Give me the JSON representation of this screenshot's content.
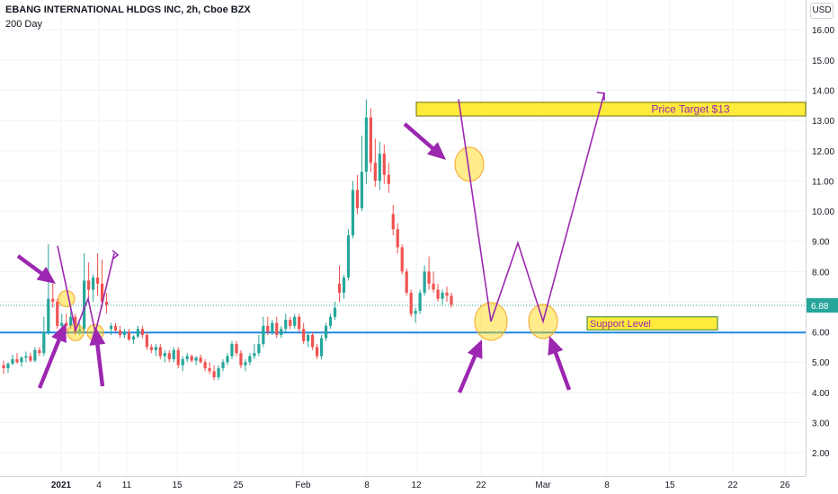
{
  "header": {
    "title": "EBANG INTERNATIONAL HLDGS INC, 2h, Cboe BZX",
    "indicator": "200 Day",
    "currency": "USD"
  },
  "chart_data": {
    "type": "candlestick",
    "ylim": [
      1.35,
      16.75
    ],
    "y_ticks": [
      "16.00",
      "15.00",
      "14.00",
      "13.00",
      "12.00",
      "11.00",
      "10.00",
      "9.00",
      "8.00",
      "7.00",
      "6.00",
      "5.00",
      "4.00",
      "3.00",
      "2.00"
    ],
    "x_ticks": [
      "2021",
      "4",
      "11",
      "15",
      "25",
      "Feb",
      "8",
      "12",
      "22",
      "Mar",
      "8",
      "15",
      "22",
      "26"
    ],
    "last_price": "6.88",
    "support_level": 5.98,
    "colors": {
      "up": "#26a69a",
      "down": "#ef5350",
      "support": "#1e88e5",
      "annotation": "#9c27b0",
      "last_price": "#26a69a"
    },
    "annotations": {
      "price_target_label": "Price Target $13",
      "support_label": "Support Level"
    },
    "candles": [
      {
        "o": 4.9,
        "h": 5.05,
        "l": 4.6,
        "c": 4.8
      },
      {
        "o": 4.8,
        "h": 5.0,
        "l": 4.65,
        "c": 4.95
      },
      {
        "o": 4.95,
        "h": 5.25,
        "l": 4.9,
        "c": 5.1
      },
      {
        "o": 5.1,
        "h": 5.3,
        "l": 4.95,
        "c": 5.0
      },
      {
        "o": 5.0,
        "h": 5.2,
        "l": 4.85,
        "c": 5.15
      },
      {
        "o": 5.15,
        "h": 5.35,
        "l": 5.0,
        "c": 5.2
      },
      {
        "o": 5.2,
        "h": 5.3,
        "l": 5.0,
        "c": 5.05
      },
      {
        "o": 5.05,
        "h": 5.5,
        "l": 5.0,
        "c": 5.4
      },
      {
        "o": 5.4,
        "h": 5.5,
        "l": 5.2,
        "c": 5.3
      },
      {
        "o": 5.3,
        "h": 6.5,
        "l": 5.2,
        "c": 6.0
      },
      {
        "o": 6.0,
        "h": 8.9,
        "l": 5.9,
        "c": 7.1
      },
      {
        "o": 7.1,
        "h": 7.6,
        "l": 6.8,
        "c": 7.0
      },
      {
        "o": 7.0,
        "h": 7.1,
        "l": 6.1,
        "c": 6.2
      },
      {
        "o": 6.2,
        "h": 6.6,
        "l": 5.8,
        "c": 6.3
      },
      {
        "o": 6.3,
        "h": 6.6,
        "l": 6.0,
        "c": 6.2
      },
      {
        "o": 6.2,
        "h": 6.9,
        "l": 6.1,
        "c": 6.5
      },
      {
        "o": 6.5,
        "h": 6.6,
        "l": 5.9,
        "c": 6.0
      },
      {
        "o": 6.0,
        "h": 6.3,
        "l": 5.9,
        "c": 6.1
      },
      {
        "o": 6.1,
        "h": 8.6,
        "l": 6.0,
        "c": 7.7
      },
      {
        "o": 7.7,
        "h": 8.3,
        "l": 7.1,
        "c": 7.4
      },
      {
        "o": 7.4,
        "h": 7.9,
        "l": 7.0,
        "c": 7.8
      },
      {
        "o": 7.8,
        "h": 8.6,
        "l": 7.2,
        "c": 7.6
      },
      {
        "o": 7.6,
        "h": 8.4,
        "l": 6.8,
        "c": 7.0
      },
      {
        "o": 7.0,
        "h": 7.3,
        "l": 6.6,
        "c": 6.9
      },
      {
        "o": 6.1,
        "h": 6.3,
        "l": 5.9,
        "c": 6.2
      },
      {
        "o": 6.2,
        "h": 6.3,
        "l": 6.0,
        "c": 6.05
      },
      {
        "o": 6.05,
        "h": 6.2,
        "l": 5.8,
        "c": 5.9
      },
      {
        "o": 5.9,
        "h": 6.1,
        "l": 5.8,
        "c": 6.0
      },
      {
        "o": 6.0,
        "h": 6.1,
        "l": 5.7,
        "c": 5.75
      },
      {
        "o": 5.75,
        "h": 5.9,
        "l": 5.6,
        "c": 5.85
      },
      {
        "o": 5.85,
        "h": 6.2,
        "l": 5.8,
        "c": 6.1
      },
      {
        "o": 6.1,
        "h": 6.2,
        "l": 5.8,
        "c": 5.9
      },
      {
        "o": 5.9,
        "h": 6.0,
        "l": 5.4,
        "c": 5.5
      },
      {
        "o": 5.5,
        "h": 5.6,
        "l": 5.3,
        "c": 5.4
      },
      {
        "o": 5.4,
        "h": 5.6,
        "l": 5.2,
        "c": 5.5
      },
      {
        "o": 5.5,
        "h": 5.6,
        "l": 5.1,
        "c": 5.2
      },
      {
        "o": 5.2,
        "h": 5.4,
        "l": 5.0,
        "c": 5.3
      },
      {
        "o": 5.3,
        "h": 5.4,
        "l": 5.0,
        "c": 5.1
      },
      {
        "o": 5.1,
        "h": 5.5,
        "l": 5.0,
        "c": 5.4
      },
      {
        "o": 5.4,
        "h": 5.5,
        "l": 4.8,
        "c": 4.9
      },
      {
        "o": 4.9,
        "h": 5.2,
        "l": 4.7,
        "c": 5.1
      },
      {
        "o": 5.1,
        "h": 5.3,
        "l": 5.0,
        "c": 5.2
      },
      {
        "o": 5.2,
        "h": 5.25,
        "l": 5.0,
        "c": 5.05
      },
      {
        "o": 5.05,
        "h": 5.2,
        "l": 4.9,
        "c": 5.15
      },
      {
        "o": 5.15,
        "h": 5.25,
        "l": 4.95,
        "c": 5.0
      },
      {
        "o": 5.0,
        "h": 5.1,
        "l": 4.7,
        "c": 4.8
      },
      {
        "o": 4.8,
        "h": 5.0,
        "l": 4.6,
        "c": 4.7
      },
      {
        "o": 4.7,
        "h": 4.9,
        "l": 4.4,
        "c": 4.5
      },
      {
        "o": 4.5,
        "h": 4.9,
        "l": 4.4,
        "c": 4.8
      },
      {
        "o": 4.8,
        "h": 5.1,
        "l": 4.7,
        "c": 5.0
      },
      {
        "o": 5.0,
        "h": 5.3,
        "l": 4.9,
        "c": 5.2
      },
      {
        "o": 5.2,
        "h": 5.7,
        "l": 5.1,
        "c": 5.6
      },
      {
        "o": 5.6,
        "h": 5.7,
        "l": 5.2,
        "c": 5.3
      },
      {
        "o": 5.3,
        "h": 5.4,
        "l": 4.8,
        "c": 4.9
      },
      {
        "o": 4.9,
        "h": 5.1,
        "l": 4.7,
        "c": 5.0
      },
      {
        "o": 5.0,
        "h": 5.3,
        "l": 4.9,
        "c": 5.2
      },
      {
        "o": 5.2,
        "h": 5.6,
        "l": 5.1,
        "c": 5.3
      },
      {
        "o": 5.3,
        "h": 5.9,
        "l": 5.2,
        "c": 5.6
      },
      {
        "o": 5.6,
        "h": 6.5,
        "l": 5.5,
        "c": 6.2
      },
      {
        "o": 6.2,
        "h": 6.5,
        "l": 5.9,
        "c": 6.0
      },
      {
        "o": 6.0,
        "h": 6.4,
        "l": 5.9,
        "c": 6.3
      },
      {
        "o": 6.3,
        "h": 6.5,
        "l": 5.8,
        "c": 5.9
      },
      {
        "o": 5.9,
        "h": 6.2,
        "l": 5.8,
        "c": 6.1
      },
      {
        "o": 6.1,
        "h": 6.6,
        "l": 6.0,
        "c": 6.4
      },
      {
        "o": 6.4,
        "h": 6.5,
        "l": 6.1,
        "c": 6.2
      },
      {
        "o": 6.2,
        "h": 6.6,
        "l": 6.1,
        "c": 6.5
      },
      {
        "o": 6.5,
        "h": 6.6,
        "l": 6.0,
        "c": 6.1
      },
      {
        "o": 6.1,
        "h": 6.3,
        "l": 5.6,
        "c": 5.7
      },
      {
        "o": 5.7,
        "h": 6.0,
        "l": 5.5,
        "c": 5.9
      },
      {
        "o": 5.9,
        "h": 6.0,
        "l": 5.4,
        "c": 5.5
      },
      {
        "o": 5.5,
        "h": 5.6,
        "l": 5.1,
        "c": 5.2
      },
      {
        "o": 5.2,
        "h": 5.9,
        "l": 5.1,
        "c": 5.8
      },
      {
        "o": 5.8,
        "h": 6.3,
        "l": 5.7,
        "c": 6.2
      },
      {
        "o": 6.2,
        "h": 6.6,
        "l": 6.1,
        "c": 6.5
      },
      {
        "o": 6.5,
        "h": 7.0,
        "l": 6.4,
        "c": 6.8
      },
      {
        "o": 7.6,
        "h": 8.2,
        "l": 7.0,
        "c": 7.3
      },
      {
        "o": 7.3,
        "h": 7.9,
        "l": 7.1,
        "c": 7.8
      },
      {
        "o": 7.8,
        "h": 9.4,
        "l": 7.7,
        "c": 9.2
      },
      {
        "o": 9.2,
        "h": 11.0,
        "l": 9.1,
        "c": 10.7
      },
      {
        "o": 10.7,
        "h": 11.2,
        "l": 9.9,
        "c": 10.1
      },
      {
        "o": 10.1,
        "h": 12.5,
        "l": 10.0,
        "c": 11.3
      },
      {
        "o": 11.3,
        "h": 13.7,
        "l": 10.9,
        "c": 13.1
      },
      {
        "o": 13.1,
        "h": 13.4,
        "l": 11.3,
        "c": 11.6
      },
      {
        "o": 11.6,
        "h": 12.4,
        "l": 10.8,
        "c": 11.0
      },
      {
        "o": 11.0,
        "h": 12.3,
        "l": 10.7,
        "c": 11.9
      },
      {
        "o": 11.9,
        "h": 12.2,
        "l": 10.9,
        "c": 11.2
      },
      {
        "o": 11.2,
        "h": 11.6,
        "l": 10.6,
        "c": 10.9
      },
      {
        "o": 9.9,
        "h": 10.2,
        "l": 9.2,
        "c": 9.4
      },
      {
        "o": 9.4,
        "h": 9.6,
        "l": 8.6,
        "c": 8.8
      },
      {
        "o": 8.8,
        "h": 8.9,
        "l": 7.9,
        "c": 8.0
      },
      {
        "o": 8.0,
        "h": 8.1,
        "l": 7.2,
        "c": 7.3
      },
      {
        "o": 7.3,
        "h": 7.4,
        "l": 6.5,
        "c": 6.6
      },
      {
        "o": 6.6,
        "h": 6.8,
        "l": 6.3,
        "c": 6.7
      },
      {
        "o": 6.7,
        "h": 7.4,
        "l": 6.6,
        "c": 7.3
      },
      {
        "o": 7.3,
        "h": 8.2,
        "l": 7.2,
        "c": 8.0
      },
      {
        "o": 8.0,
        "h": 8.5,
        "l": 7.4,
        "c": 7.6
      },
      {
        "o": 7.6,
        "h": 8.0,
        "l": 7.3,
        "c": 7.4
      },
      {
        "o": 7.4,
        "h": 7.6,
        "l": 7.0,
        "c": 7.1
      },
      {
        "o": 7.1,
        "h": 7.4,
        "l": 6.9,
        "c": 7.3
      },
      {
        "o": 7.3,
        "h": 7.5,
        "l": 7.0,
        "c": 7.2
      },
      {
        "o": 7.2,
        "h": 7.3,
        "l": 6.8,
        "c": 6.9
      }
    ]
  }
}
